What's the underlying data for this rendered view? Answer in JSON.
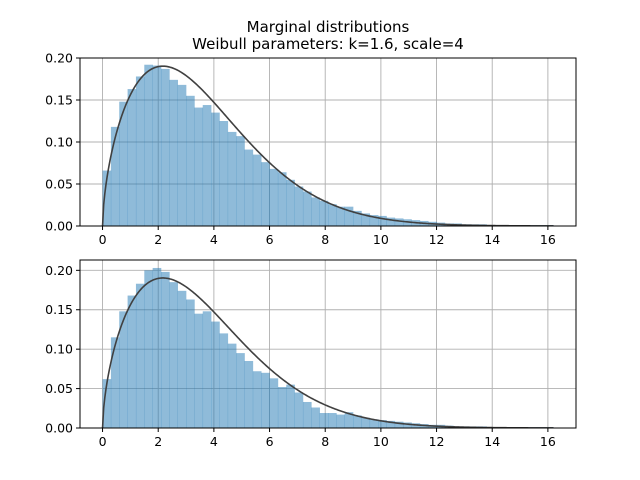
{
  "figure": {
    "title_line1": "Marginal distributions",
    "title_line2": "Weibull parameters: k=1.6, scale=4"
  },
  "colors": {
    "bars": "#1f77b4",
    "bars_opacity": 0.5,
    "curve": "#404040",
    "grid": "#b0b0b0"
  },
  "chart_data": [
    {
      "type": "bar",
      "subtype": "histogram",
      "bin_edges_start": 0.0,
      "bin_width": 0.3,
      "values": [
        0.066,
        0.118,
        0.148,
        0.163,
        0.178,
        0.192,
        0.191,
        0.187,
        0.174,
        0.168,
        0.155,
        0.141,
        0.144,
        0.135,
        0.125,
        0.112,
        0.107,
        0.091,
        0.085,
        0.076,
        0.068,
        0.064,
        0.055,
        0.047,
        0.041,
        0.034,
        0.03,
        0.026,
        0.023,
        0.023,
        0.018,
        0.015,
        0.013,
        0.012,
        0.01,
        0.009,
        0.008,
        0.007,
        0.006,
        0.005,
        0.004,
        0.003,
        0.003,
        0.002,
        0.002,
        0.002,
        0.001,
        0.001,
        0.001,
        0.001,
        0.001,
        0.001,
        0.001,
        0.001
      ],
      "curve": {
        "name": "",
        "distribution": "weibull",
        "k": 1.6,
        "scale": 4,
        "x_range": [
          0,
          16.2
        ]
      },
      "xlim": [
        -0.81,
        17.01
      ],
      "ylim": [
        0,
        0.2
      ],
      "xticks": [
        "0",
        "2",
        "4",
        "6",
        "8",
        "10",
        "12",
        "14",
        "16"
      ],
      "yticks": [
        "0.00",
        "0.05",
        "0.10",
        "0.15",
        "0.20"
      ],
      "grid": true
    },
    {
      "type": "bar",
      "subtype": "histogram",
      "bin_edges_start": 0.0,
      "bin_width": 0.3,
      "values": [
        0.062,
        0.115,
        0.148,
        0.168,
        0.183,
        0.2,
        0.203,
        0.198,
        0.185,
        0.174,
        0.163,
        0.145,
        0.148,
        0.135,
        0.12,
        0.107,
        0.095,
        0.085,
        0.072,
        0.07,
        0.063,
        0.052,
        0.055,
        0.045,
        0.033,
        0.026,
        0.019,
        0.019,
        0.017,
        0.02,
        0.016,
        0.013,
        0.011,
        0.01,
        0.009,
        0.008,
        0.007,
        0.006,
        0.005,
        0.004,
        0.004,
        0.003,
        0.002,
        0.002,
        0.002,
        0.002,
        0.001,
        0.001,
        0.001,
        0.001,
        0.001,
        0.001,
        0.001,
        0.001
      ],
      "curve": {
        "name": "",
        "distribution": "weibull",
        "k": 1.6,
        "scale": 4,
        "x_range": [
          0,
          16.2
        ]
      },
      "xlim": [
        -0.81,
        17.01
      ],
      "ylim": [
        0,
        0.2131
      ],
      "xticks": [
        "0",
        "2",
        "4",
        "6",
        "8",
        "10",
        "12",
        "14",
        "16"
      ],
      "yticks": [
        "0.00",
        "0.05",
        "0.10",
        "0.15",
        "0.20"
      ],
      "grid": true
    }
  ]
}
